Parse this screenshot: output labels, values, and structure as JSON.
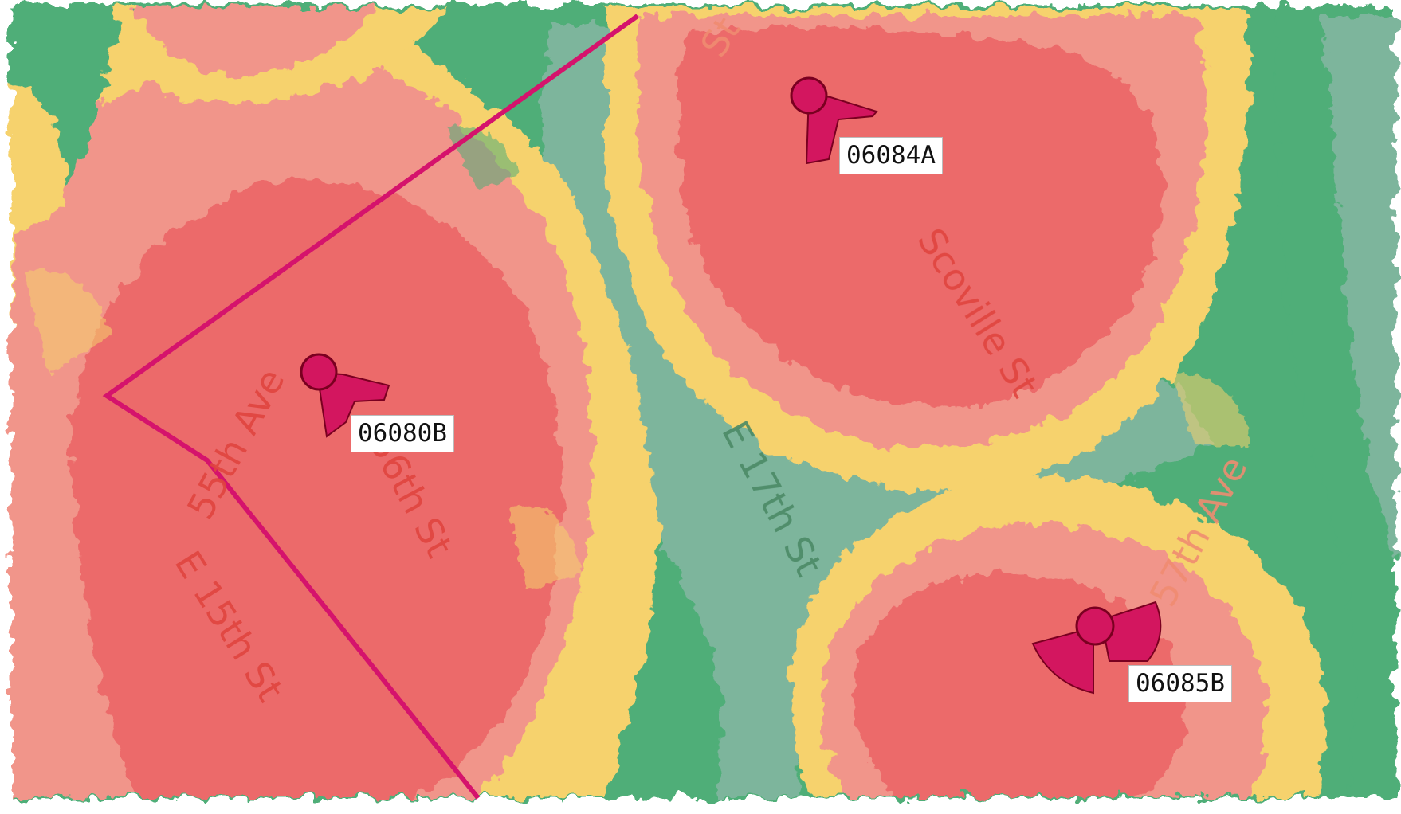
{
  "map": {
    "colors": {
      "strong": "#EC6A6A",
      "good": "#F1958A",
      "fair": "#F6D26D",
      "weak": "#4FAE78",
      "none": "#7DB59C",
      "boundary": "#D5136C",
      "site": "#D3165F"
    },
    "streets": [
      {
        "id": "55th-ave",
        "text": "55th Ave"
      },
      {
        "id": "56th-st",
        "text": "56th St"
      },
      {
        "id": "e-15th",
        "text": "E 15th St"
      },
      {
        "id": "e-17th",
        "text": "E 17th St"
      },
      {
        "id": "scoville",
        "text": "Scoville St"
      },
      {
        "id": "57th-ave",
        "text": "57th Ave"
      },
      {
        "id": "top-street",
        "text": "St"
      }
    ],
    "sites": [
      {
        "id": "06084A",
        "label": "06084A"
      },
      {
        "id": "06080B",
        "label": "06080B"
      },
      {
        "id": "06085B",
        "label": "06085B"
      }
    ]
  }
}
